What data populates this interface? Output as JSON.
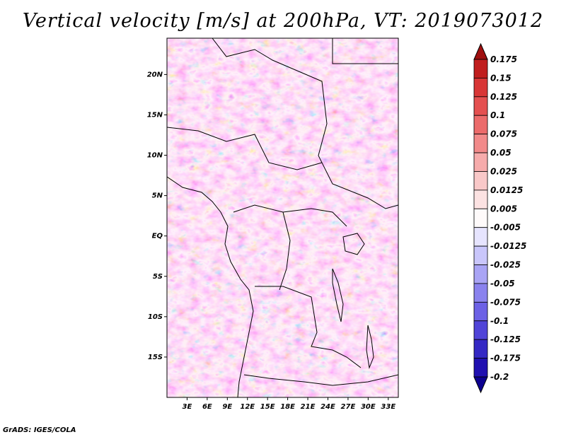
{
  "chart_data": {
    "type": "heatmap",
    "title": "Vertical velocity [m/s] at 200hPa, VT: 2019073012",
    "variable": "Vertical velocity",
    "units": "m/s",
    "level": "200hPa",
    "valid_time": "2019073012",
    "x_ticks": [
      "3E",
      "6E",
      "9E",
      "12E",
      "15E",
      "18E",
      "21E",
      "24E",
      "27E",
      "30E",
      "33E"
    ],
    "x_tick_values": [
      3,
      6,
      9,
      12,
      15,
      18,
      21,
      24,
      27,
      30,
      33
    ],
    "y_ticks": [
      "20N",
      "15N",
      "10N",
      "5N",
      "EQ",
      "5S",
      "10S",
      "15S"
    ],
    "y_tick_values": [
      20,
      15,
      10,
      5,
      0,
      -5,
      -10,
      -15
    ],
    "xlim": [
      0,
      34.5
    ],
    "ylim": [
      -20,
      24.5
    ],
    "colorbar": {
      "levels": [
        "0.175",
        "0.15",
        "0.125",
        "0.1",
        "0.075",
        "0.05",
        "0.025",
        "0.0125",
        "0.005",
        "-0.005",
        "-0.0125",
        "-0.025",
        "-0.05",
        "-0.075",
        "-0.1",
        "-0.125",
        "-0.175",
        "-0.2"
      ],
      "colors": [
        "#a01010",
        "#c01e1e",
        "#d83636",
        "#e45050",
        "#ec6b6b",
        "#f28a8a",
        "#f6abab",
        "#f9c8c8",
        "#fce2e2",
        "#fefafa",
        "#e6e4fe",
        "#c9c6fb",
        "#a9a4f5",
        "#8a82ee",
        "#6c61e5",
        "#5044d8",
        "#3428c4",
        "#2010b0",
        "#0c0090"
      ]
    }
  },
  "credit": "GrADS: IGES/COLA"
}
